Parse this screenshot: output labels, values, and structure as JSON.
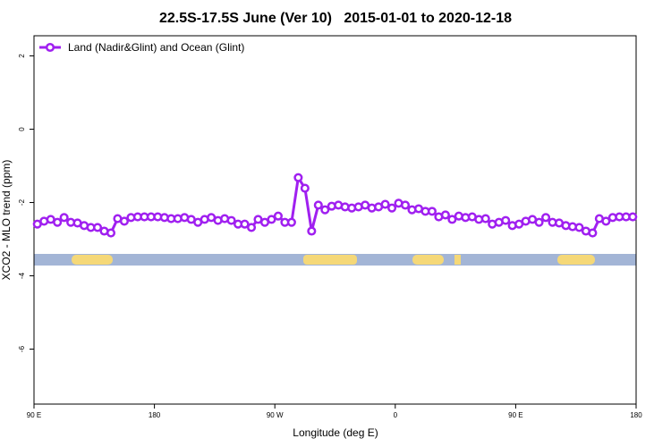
{
  "chart_data": {
    "type": "line",
    "title": "22.5S-17.5S June (Ver 10)   2015-01-01 to 2020-12-18",
    "x_label": "Longitude (deg E)",
    "y_label": "XCO2 - MLO trend (ppm)",
    "x": [
      92.5,
      97.5,
      102.5,
      107.5,
      112.5,
      117.5,
      122.5,
      127.5,
      132.5,
      137.5,
      142.5,
      147.5,
      152.5,
      157.5,
      162.5,
      167.5,
      172.5,
      177.5,
      182.5,
      187.5,
      192.5,
      197.5,
      202.5,
      207.5,
      212.5,
      217.5,
      222.5,
      227.5,
      232.5,
      237.5,
      242.5,
      247.5,
      252.5,
      257.5,
      262.5,
      267.5,
      272.5,
      277.5,
      282.5,
      287.5,
      292.5,
      297.5,
      302.5,
      307.5,
      312.5,
      317.5,
      322.5,
      327.5,
      332.5,
      337.5,
      342.5,
      347.5,
      352.5,
      357.5,
      362.5,
      367.5,
      372.5,
      377.5,
      382.5,
      387.5,
      392.5,
      397.5,
      402.5,
      407.5,
      412.5,
      417.5,
      422.5,
      427.5,
      432.5,
      437.5,
      442.5,
      447.5,
      452.5,
      457.5,
      462.5,
      467.5,
      472.5,
      477.5,
      482.5,
      487.5,
      492.5,
      497.5,
      502.5,
      507.5,
      512.5,
      517.5,
      522.5,
      527.5,
      532.5,
      537.5
    ],
    "series": [
      {
        "name": "Land (Nadir&Glint) and Ocean (Glint)",
        "color": "#a020f0",
        "values": [
          -2.59,
          -2.51,
          -2.46,
          -2.54,
          -2.41,
          -2.54,
          -2.56,
          -2.63,
          -2.68,
          -2.68,
          -2.78,
          -2.83,
          -2.44,
          -2.51,
          -2.41,
          -2.39,
          -2.39,
          -2.39,
          -2.39,
          -2.41,
          -2.44,
          -2.44,
          -2.41,
          -2.46,
          -2.54,
          -2.46,
          -2.41,
          -2.49,
          -2.44,
          -2.49,
          -2.59,
          -2.59,
          -2.68,
          -2.46,
          -2.54,
          -2.46,
          -2.37,
          -2.54,
          -2.54,
          -1.32,
          -1.61,
          -2.78,
          -2.07,
          -2.2,
          -2.1,
          -2.07,
          -2.12,
          -2.15,
          -2.12,
          -2.07,
          -2.15,
          -2.12,
          -2.05,
          -2.15,
          -2.02,
          -2.07,
          -2.2,
          -2.17,
          -2.24,
          -2.24,
          -2.39,
          -2.34,
          -2.46,
          -2.37,
          -2.41,
          -2.39,
          -2.46,
          -2.44,
          -2.59,
          -2.54,
          -2.49,
          -2.63,
          -2.59,
          -2.51,
          -2.46,
          -2.54,
          -2.41,
          -2.54,
          -2.56,
          -2.63,
          -2.66,
          -2.68,
          -2.78,
          -2.83,
          -2.44,
          -2.51,
          -2.41,
          -2.39,
          -2.39,
          -2.39
        ]
      }
    ],
    "xlim": [
      90,
      540
    ],
    "xticks": [
      {
        "value": 90,
        "label": "90 E"
      },
      180,
      {
        "value": 270,
        "label": "90 W"
      },
      {
        "value": 360,
        "label": "0"
      },
      {
        "value": 450,
        "label": "90 E"
      },
      {
        "value": 540,
        "label": "180"
      }
    ],
    "ylim": [
      -7.5,
      2.55
    ],
    "yticks": [
      2,
      0,
      -2,
      -4,
      -6
    ],
    "grid": false,
    "legend": "top-left"
  }
}
